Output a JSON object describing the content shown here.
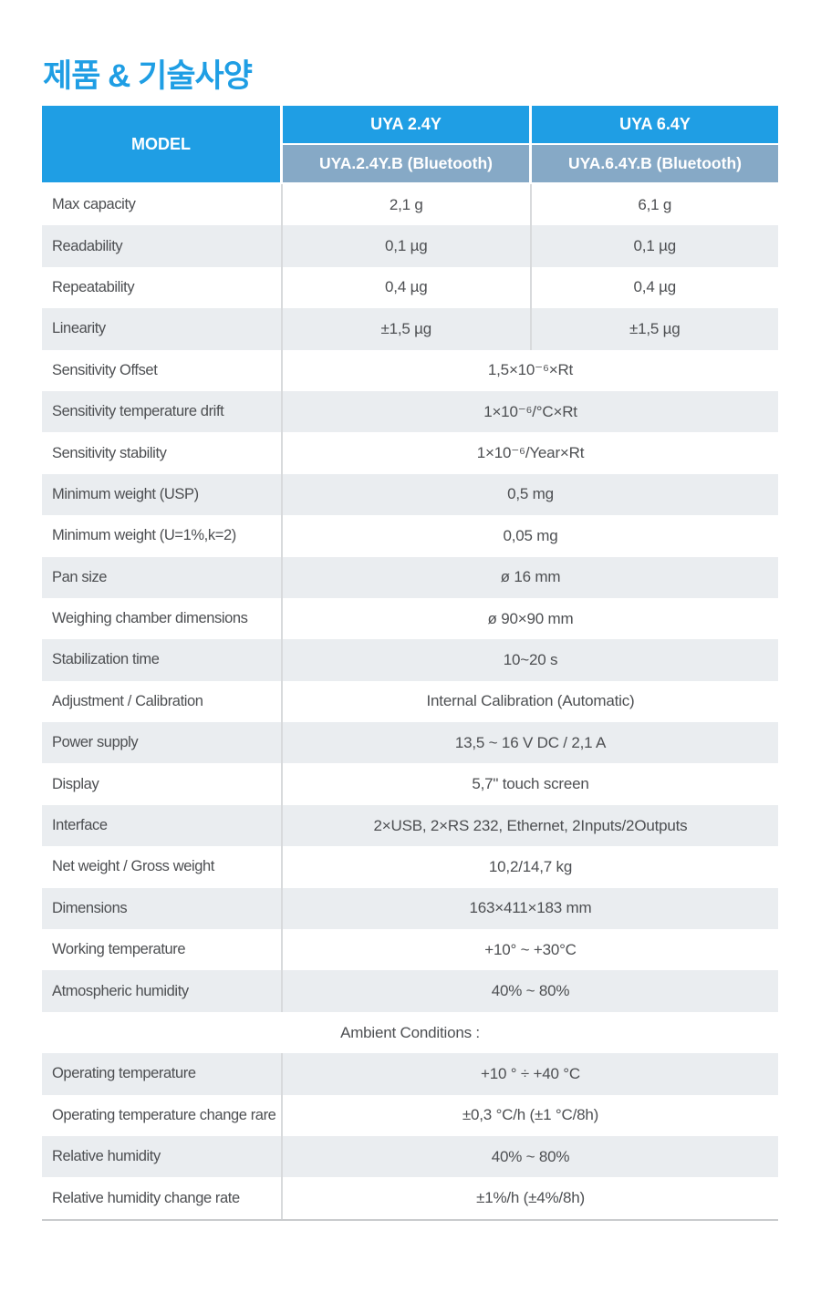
{
  "page_title": "제품 & 기술사양",
  "colors": {
    "accent": "#1f9ee4",
    "subheader": "#86a9c6",
    "stripe": "#eaedf0",
    "divider": "#d8dadc",
    "table_border": "#c9cbcd",
    "text": "#4d4f52"
  },
  "table": {
    "header": {
      "model_label": "MODEL",
      "columns": [
        {
          "model": "UYA 2.4Y",
          "bluetooth": "UYA.2.4Y.B (Bluetooth)"
        },
        {
          "model": "UYA 6.4Y",
          "bluetooth": "UYA.6.4Y.B (Bluetooth)"
        }
      ]
    },
    "rows": [
      {
        "label": "Max capacity",
        "values": [
          "2,1 g",
          "6,1 g"
        ]
      },
      {
        "label": "Readability",
        "values": [
          "0,1 µg",
          "0,1 µg"
        ]
      },
      {
        "label": "Repeatability",
        "values": [
          "0,4 µg",
          "0,4 µg"
        ]
      },
      {
        "label": "Linearity",
        "values": [
          "±1,5 µg",
          "±1,5 µg"
        ]
      },
      {
        "label": "Sensitivity Offset",
        "value": "1,5×10⁻⁶×Rt"
      },
      {
        "label": "Sensitivity temperature drift",
        "value": "1×10⁻⁶/°C×Rt"
      },
      {
        "label": "Sensitivity stability",
        "value": "1×10⁻⁶/Year×Rt"
      },
      {
        "label": "Minimum weight (USP)",
        "value": "0,5 mg"
      },
      {
        "label": "Minimum weight (U=1%,k=2)",
        "value": "0,05 mg"
      },
      {
        "label": "Pan size",
        "value": "ø 16 mm"
      },
      {
        "label": "Weighing chamber dimensions",
        "value": "ø 90×90 mm"
      },
      {
        "label": "Stabilization time",
        "value": "10~20 s"
      },
      {
        "label": "Adjustment / Calibration",
        "value": "Internal Calibration (Automatic)"
      },
      {
        "label": "Power supply",
        "value": "13,5 ~ 16 V DC / 2,1 A"
      },
      {
        "label": "Display",
        "value": "5,7\" touch screen"
      },
      {
        "label": "Interface",
        "value": "2×USB, 2×RS 232, Ethernet, 2Inputs/2Outputs"
      },
      {
        "label": "Net weight / Gross weight",
        "value": "10,2/14,7 kg"
      },
      {
        "label": "Dimensions",
        "value": "163×411×183 mm"
      },
      {
        "label": "Working temperature",
        "value": "+10° ~ +30°C"
      },
      {
        "label": "Atmospheric humidity",
        "value": "40% ~ 80%"
      },
      {
        "section": "Ambient Conditions :"
      },
      {
        "label": "Operating temperature",
        "value": "+10 ° ÷ +40 °C"
      },
      {
        "label": "Operating temperature change rare",
        "value": "±0,3 °C/h (±1 °C/8h)"
      },
      {
        "label": "Relative humidity",
        "value": "40% ~ 80%"
      },
      {
        "label": "Relative humidity change rate",
        "value": "±1%/h (±4%/8h)"
      }
    ]
  }
}
